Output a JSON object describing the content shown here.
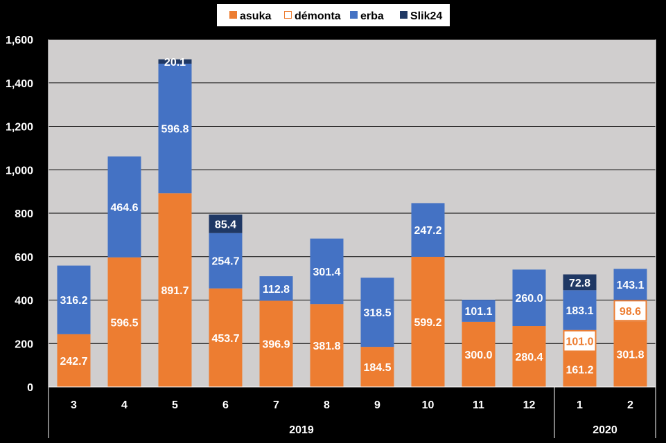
{
  "chart_data": {
    "type": "bar",
    "stacked": true,
    "categories": [
      "3",
      "4",
      "5",
      "6",
      "7",
      "8",
      "9",
      "10",
      "11",
      "12",
      "1",
      "2"
    ],
    "groups": [
      {
        "label": "2019",
        "from": 0,
        "to": 9
      },
      {
        "label": "2020",
        "from": 10,
        "to": 11
      }
    ],
    "series": [
      {
        "name": "asuka",
        "color": "#ED7D31",
        "style": "filled",
        "label_color": "#ffffff",
        "values": [
          242.7,
          596.5,
          891.7,
          453.7,
          396.9,
          381.8,
          184.5,
          599.2,
          300.0,
          280.4,
          161.2,
          301.8
        ],
        "labels": [
          "242.7",
          "596.5",
          "891.7",
          "453.7",
          "396.9",
          "381.8",
          "184.5",
          "599.2",
          "300.0",
          "280.4",
          "161.2",
          "301.8"
        ]
      },
      {
        "name": "démonta",
        "color": "#ED7D31",
        "style": "outline",
        "label_color": "#ED7D31",
        "values": [
          null,
          null,
          null,
          null,
          null,
          null,
          null,
          null,
          null,
          null,
          101.0,
          98.6
        ],
        "labels": [
          "",
          "",
          "",
          "",
          "",
          "",
          "",
          "",
          "",
          "",
          "101.0",
          "98.6"
        ]
      },
      {
        "name": "erba",
        "color": "#4472C4",
        "style": "filled",
        "label_color": "#ffffff",
        "values": [
          316.2,
          464.6,
          596.8,
          254.7,
          112.8,
          301.4,
          318.5,
          247.2,
          101.1,
          260.0,
          183.1,
          143.1
        ],
        "labels": [
          "316.2",
          "464.6",
          "596.8",
          "254.7",
          "112.8",
          "301.4",
          "318.5",
          "247.2",
          "101.1",
          "260.0",
          "183.1",
          "143.1"
        ]
      },
      {
        "name": "Slik24",
        "color": "#1F3864",
        "style": "filled",
        "label_color": "#ffffff",
        "values": [
          null,
          null,
          20.1,
          85.4,
          null,
          null,
          null,
          null,
          null,
          null,
          72.8,
          null
        ],
        "labels": [
          "",
          "",
          "20.1",
          "85.4",
          "",
          "",
          "",
          "",
          "",
          "",
          "72.8",
          ""
        ]
      }
    ],
    "ylim": [
      0,
      1600
    ],
    "yticks": [
      0,
      200,
      400,
      600,
      800,
      1000,
      1200,
      1400,
      1600
    ],
    "ytick_labels": [
      "0",
      "200",
      "400",
      "600",
      "800",
      "1,000",
      "1,200",
      "1,400",
      "1,600"
    ],
    "grid": true,
    "legend": "top-center",
    "title": "",
    "xlabel": "",
    "ylabel": ""
  }
}
